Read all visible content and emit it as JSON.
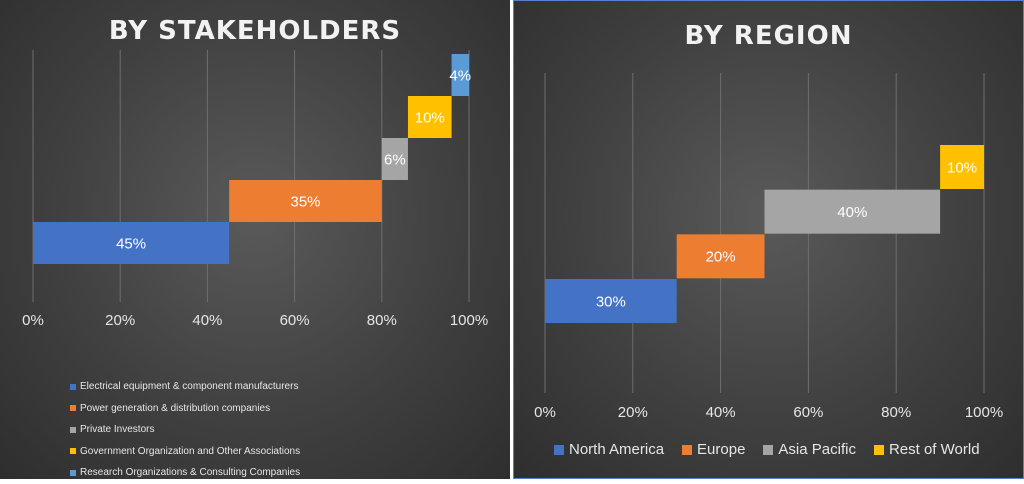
{
  "chart_data": [
    {
      "type": "bar",
      "title": "BY STAKEHOLDERS",
      "x_ticks": [
        "0%",
        "20%",
        "40%",
        "60%",
        "80%",
        "100%"
      ],
      "xlim": [
        0,
        100
      ],
      "grid": true,
      "legend_position": "bottom",
      "series": [
        {
          "name": "Electrical equipment & component manufacturers",
          "value": 45,
          "label": "45%",
          "color": "#4472c4"
        },
        {
          "name": "Power generation & distribution companies",
          "value": 35,
          "label": "35%",
          "color": "#ed7d31"
        },
        {
          "name": "Private Investors",
          "value": 6,
          "label": "6%",
          "color": "#a5a5a5"
        },
        {
          "name": "Government Organization and Other Associations",
          "value": 10,
          "label": "10%",
          "color": "#ffc000"
        },
        {
          "name": "Research Organizations & Consulting Companies",
          "value": 4,
          "label": "4%",
          "color": "#5b9bd5"
        }
      ]
    },
    {
      "type": "bar",
      "title": "BY REGION",
      "x_ticks": [
        "0%",
        "20%",
        "40%",
        "60%",
        "80%",
        "100%"
      ],
      "xlim": [
        0,
        100
      ],
      "grid": true,
      "legend_position": "bottom",
      "series": [
        {
          "name": "North America",
          "value": 30,
          "label": "30%",
          "color": "#4472c4"
        },
        {
          "name": "Europe",
          "value": 20,
          "label": "20%",
          "color": "#ed7d31"
        },
        {
          "name": "Asia Pacific",
          "value": 40,
          "label": "40%",
          "color": "#a5a5a5"
        },
        {
          "name": "Rest of World",
          "value": 10,
          "label": "10%",
          "color": "#ffc000"
        }
      ]
    }
  ]
}
